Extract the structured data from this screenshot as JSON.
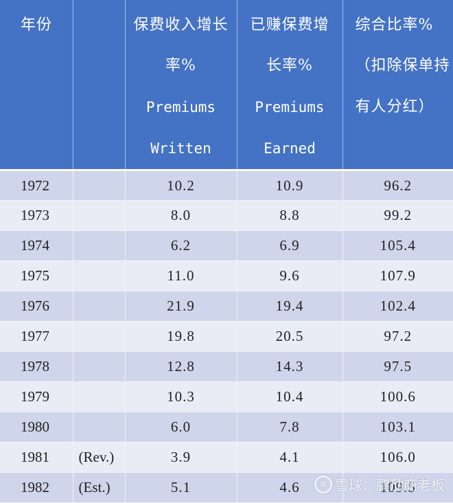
{
  "table": {
    "header_color": "#4472c4",
    "row_colors": [
      "#cfd5ea",
      "#e9ebf5"
    ],
    "columns": [
      {
        "lines": [
          "年份"
        ]
      },
      {
        "lines": []
      },
      {
        "lines": [
          "保费收入增长",
          "率%",
          "Premiums",
          "Written"
        ]
      },
      {
        "lines": [
          "已赚保费增",
          "长率%",
          "Premiums",
          "Earned"
        ]
      },
      {
        "lines": [
          "综合比率%",
          "（扣除保单持",
          "有人分红）"
        ]
      }
    ],
    "rows": [
      {
        "year": "1972",
        "note": "",
        "premiums_written": "10.2",
        "premiums_earned": "10.9",
        "combined_ratio": "96.2"
      },
      {
        "year": "1973",
        "note": "",
        "premiums_written": "8.0",
        "premiums_earned": "8.8",
        "combined_ratio": "99.2"
      },
      {
        "year": "1974",
        "note": "",
        "premiums_written": "6.2",
        "premiums_earned": "6.9",
        "combined_ratio": "105.4"
      },
      {
        "year": "1975",
        "note": "",
        "premiums_written": "11.0",
        "premiums_earned": "9.6",
        "combined_ratio": "107.9"
      },
      {
        "year": "1976",
        "note": "",
        "premiums_written": "21.9",
        "premiums_earned": "19.4",
        "combined_ratio": "102.4"
      },
      {
        "year": "1977",
        "note": "",
        "premiums_written": "19.8",
        "premiums_earned": "20.5",
        "combined_ratio": "97.2"
      },
      {
        "year": "1978",
        "note": "",
        "premiums_written": "12.8",
        "premiums_earned": "14.3",
        "combined_ratio": "97.5"
      },
      {
        "year": "1979",
        "note": "",
        "premiums_written": "10.3",
        "premiums_earned": "10.4",
        "combined_ratio": "100.6"
      },
      {
        "year": "1980",
        "note": "",
        "premiums_written": "6.0",
        "premiums_earned": "7.8",
        "combined_ratio": "103.1"
      },
      {
        "year": "1981",
        "note": "(Rev.)",
        "premiums_written": "3.9",
        "premiums_earned": "4.1",
        "combined_ratio": "106.0"
      },
      {
        "year": "1982",
        "note": "(Est.)",
        "premiums_written": "5.1",
        "premiums_earned": "4.6",
        "combined_ratio": "109.5"
      }
    ]
  },
  "watermark": {
    "logo_icon": "snowball-logo-icon",
    "logo_glyph": "⊗",
    "text": "雪球：鹏劢商老板"
  }
}
